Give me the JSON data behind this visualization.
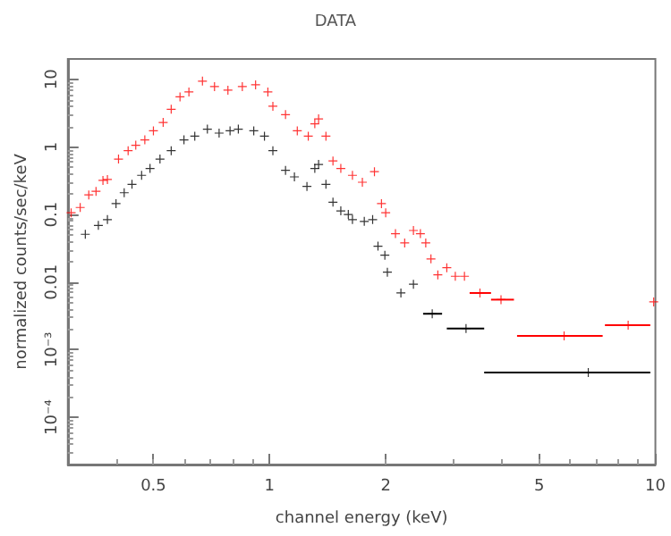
{
  "chart_data": {
    "type": "scatter",
    "title": "DATA",
    "xlabel": "channel energy (keV)",
    "ylabel": "normalized counts/sec/keV",
    "log": "xy",
    "grid": false,
    "marker": "cross",
    "xlim": [
      0.3,
      10
    ],
    "xticks": [
      0.5,
      1,
      2,
      5,
      10
    ],
    "ylim": [
      2e-05,
      20
    ],
    "yticks": [
      {
        "value": 0.0001,
        "label": "10⁻⁴"
      },
      {
        "value": 0.001,
        "label": "10⁻³"
      },
      0.01,
      0.1,
      1,
      10
    ],
    "series": [
      {
        "color": "#ff0000",
        "x": [
          0.306,
          0.323,
          0.34,
          0.355,
          0.37,
          0.38,
          0.406,
          0.43,
          0.45,
          0.475,
          0.5,
          0.53,
          0.556,
          0.586,
          0.618,
          0.67,
          0.72,
          0.78,
          0.85,
          0.92,
          0.99,
          1.02,
          1.1,
          1.18,
          1.26,
          1.31,
          1.34,
          1.4,
          1.46,
          1.53,
          1.64,
          1.74,
          1.87,
          1.95,
          2.0,
          2.12,
          2.24,
          2.36,
          2.46,
          2.54,
          2.62,
          2.73,
          2.88,
          3.03,
          3.2,
          3.51,
          3.98,
          5.8,
          8.5,
          9.9
        ],
        "values": [
          0.106,
          0.127,
          0.195,
          0.22,
          0.32,
          0.33,
          0.66,
          0.88,
          1.06,
          1.27,
          1.73,
          2.3,
          3.6,
          5.5,
          6.5,
          9.4,
          7.8,
          6.9,
          7.8,
          8.3,
          6.5,
          4,
          3,
          1.73,
          1.44,
          2.2,
          2.6,
          1.44,
          0.62,
          0.48,
          0.38,
          0.3,
          0.43,
          0.145,
          0.106,
          0.052,
          0.038,
          0.058,
          0.052,
          0.038,
          0.022,
          0.0128,
          0.0163,
          0.0122,
          0.0122,
          0.0069,
          0.0055,
          0.0016,
          0.0023,
          0.0051
        ],
        "xerrors": [
          null,
          null,
          null,
          null,
          null,
          null,
          null,
          null,
          null,
          null,
          null,
          null,
          null,
          null,
          null,
          null,
          null,
          null,
          null,
          null,
          null,
          null,
          null,
          null,
          null,
          null,
          null,
          null,
          null,
          null,
          null,
          null,
          null,
          null,
          null,
          null,
          null,
          null,
          null,
          null,
          null,
          null,
          null,
          null,
          null,
          [
            3.3,
            3.75
          ],
          [
            3.75,
            4.3
          ],
          [
            4.38,
            7.3
          ],
          [
            7.4,
            9.7
          ],
          null
        ]
      },
      {
        "color": "#000000",
        "x": [
          0.333,
          0.36,
          0.38,
          0.4,
          0.42,
          0.44,
          0.466,
          0.49,
          0.52,
          0.556,
          0.6,
          0.64,
          0.69,
          0.74,
          0.79,
          0.83,
          0.91,
          0.97,
          1.02,
          1.1,
          1.16,
          1.25,
          1.31,
          1.34,
          1.4,
          1.46,
          1.53,
          1.6,
          1.64,
          1.76,
          1.85,
          1.91,
          1.99,
          2.02,
          2.19,
          2.36,
          2.64,
          3.23,
          6.7
        ],
        "values": [
          0.051,
          0.069,
          0.084,
          0.145,
          0.21,
          0.28,
          0.38,
          0.48,
          0.66,
          0.88,
          1.27,
          1.44,
          1.83,
          1.6,
          1.73,
          1.83,
          1.73,
          1.44,
          0.88,
          0.45,
          0.36,
          0.26,
          0.48,
          0.55,
          0.28,
          0.152,
          0.113,
          0.1,
          0.084,
          0.079,
          0.084,
          0.034,
          0.025,
          0.014,
          0.0069,
          0.0093,
          0.0034,
          0.00206,
          0.00046
        ],
        "xerrors": [
          null,
          null,
          null,
          null,
          null,
          null,
          null,
          null,
          null,
          null,
          null,
          null,
          null,
          null,
          null,
          null,
          null,
          null,
          null,
          null,
          null,
          null,
          null,
          null,
          null,
          null,
          null,
          null,
          null,
          null,
          null,
          null,
          null,
          null,
          null,
          null,
          [
            2.5,
            2.8
          ],
          [
            2.88,
            3.6
          ],
          [
            3.6,
            9.7
          ]
        ]
      }
    ]
  }
}
